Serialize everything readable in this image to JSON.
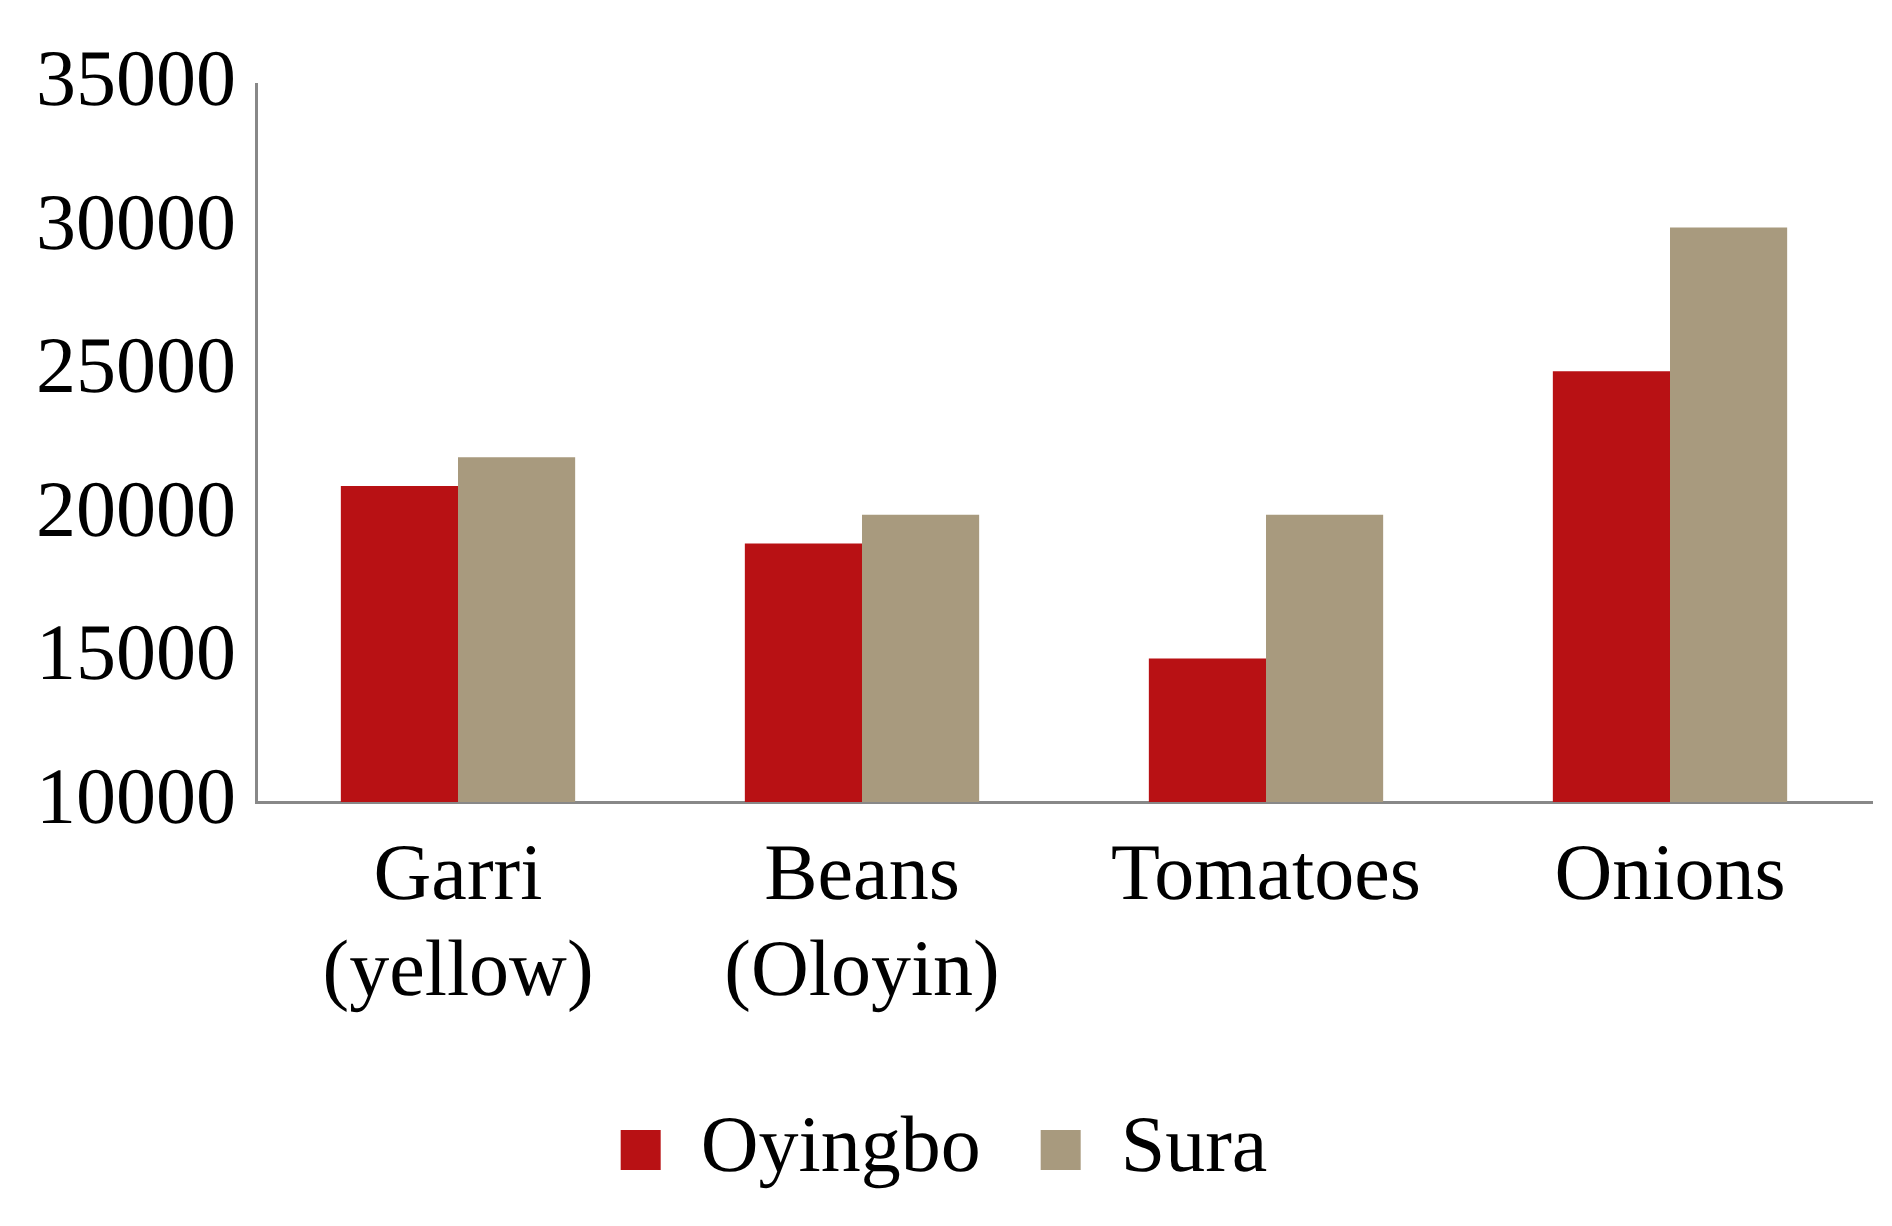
{
  "chart_data": {
    "type": "bar",
    "categories": [
      "Garri (yellow)",
      "Beans (Oloyin)",
      "Tomatoes",
      "Onions"
    ],
    "series": [
      {
        "name": "Oyingbo",
        "color": "#b81114",
        "values": [
          21000,
          19000,
          15000,
          25000
        ]
      },
      {
        "name": "Sura",
        "color": "#a89a7e",
        "values": [
          22000,
          20000,
          20000,
          30000
        ]
      }
    ],
    "ylim": [
      10000,
      35000
    ],
    "yticks": [
      10000,
      15000,
      20000,
      25000,
      30000,
      35000
    ],
    "grid": false,
    "legend": "bottom"
  }
}
